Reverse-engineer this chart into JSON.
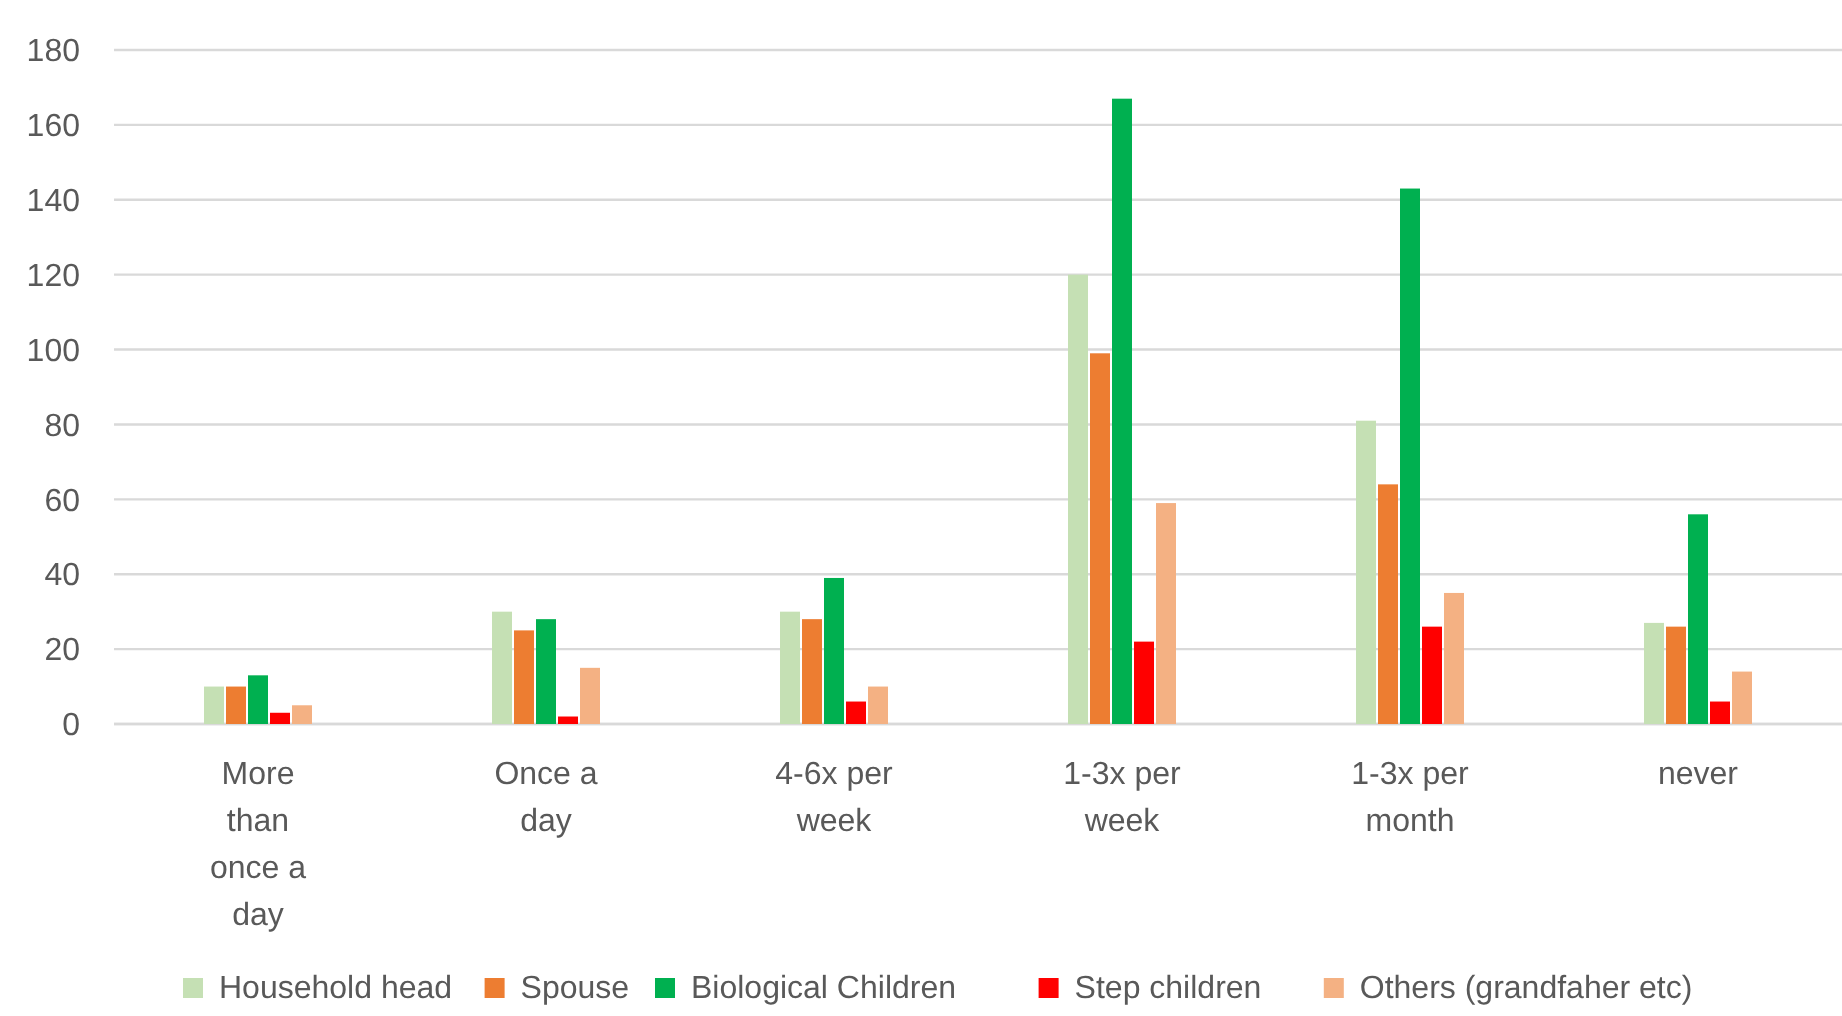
{
  "chart_data": {
    "type": "bar",
    "categories": [
      "More than once a day",
      "Once a day",
      "4-6x per week",
      "1-3x per week",
      "1-3x per month",
      "never"
    ],
    "series": [
      {
        "name": "Household head",
        "color": "#c5e0b4",
        "values": [
          10,
          30,
          30,
          120,
          81,
          27
        ]
      },
      {
        "name": "Spouse",
        "color": "#ed7d31",
        "values": [
          10,
          25,
          28,
          99,
          64,
          26
        ]
      },
      {
        "name": "Biological Children",
        "color": "#00b050",
        "values": [
          13,
          28,
          39,
          167,
          143,
          56
        ]
      },
      {
        "name": "Step children",
        "color": "#ff0000",
        "values": [
          3,
          2,
          6,
          22,
          26,
          6
        ]
      },
      {
        "name": "Others (grandfaher etc)",
        "color": "#f4b183",
        "values": [
          5,
          15,
          10,
          59,
          35,
          14
        ]
      }
    ],
    "ylim": [
      0,
      180
    ],
    "yticks": [
      0,
      20,
      40,
      60,
      80,
      100,
      120,
      140,
      160,
      180
    ],
    "grid": "y",
    "legend": "bottom"
  }
}
